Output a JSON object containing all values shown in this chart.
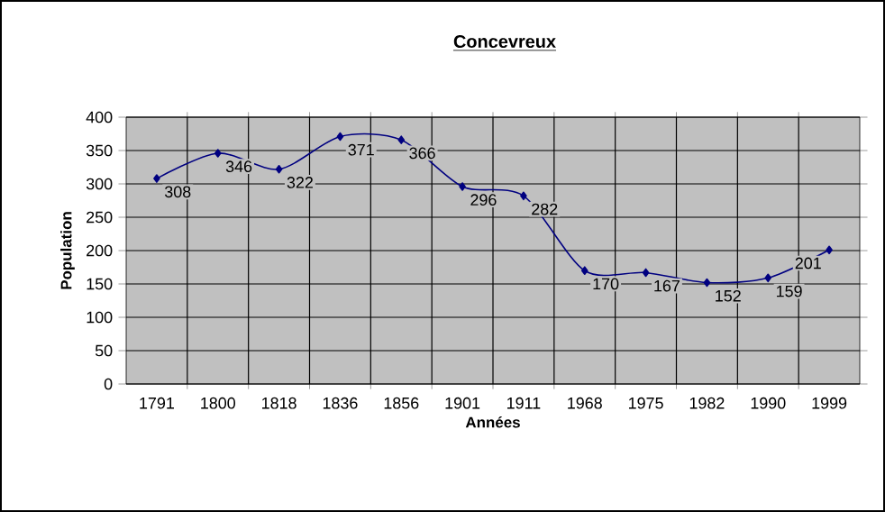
{
  "chart_data": {
    "type": "line",
    "title": "Concevreux",
    "xlabel": "Années",
    "ylabel": "Population",
    "categories": [
      "1791",
      "1800",
      "1818",
      "1836",
      "1856",
      "1901",
      "1911",
      "1968",
      "1975",
      "1982",
      "1990",
      "1999"
    ],
    "values": [
      308,
      346,
      322,
      371,
      366,
      296,
      282,
      170,
      167,
      152,
      159,
      201
    ],
    "color": "#000080",
    "marker": "diamond",
    "data_labels": true,
    "grid": true,
    "ylim": [
      0,
      400
    ],
    "yticks": [
      0,
      50,
      100,
      150,
      200,
      250,
      300,
      350,
      400
    ]
  }
}
